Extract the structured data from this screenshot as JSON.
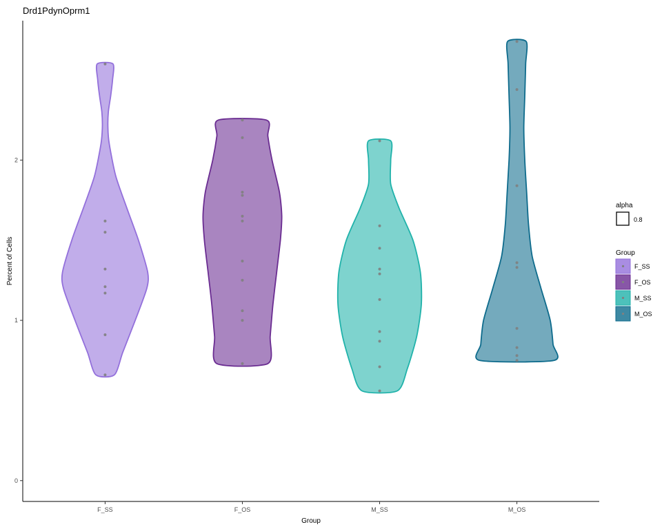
{
  "chart_data": {
    "type": "violin",
    "title": "Drd1PdynOprm1",
    "xlabel": "Group",
    "ylabel": "Percent of Cells",
    "ylim": [
      -0.13,
      2.87
    ],
    "yticks": [
      0,
      1,
      2
    ],
    "categories": [
      "F_SS",
      "F_OS",
      "M_SS",
      "M_OS"
    ],
    "colors": {
      "F_SS": "#9370DB",
      "F_OS": "#6A2C91",
      "M_SS": "#20B2AA",
      "M_OS": "#0E6B8C"
    },
    "points_color": "#808080",
    "fill_alpha": 0.8,
    "series": [
      {
        "name": "F_SS",
        "min": 0.66,
        "max": 2.6,
        "points": [
          2.6,
          1.62,
          1.55,
          1.32,
          1.21,
          1.17,
          0.91,
          0.66
        ],
        "profile": [
          [
            0.66,
            0.2
          ],
          [
            0.8,
            0.38
          ],
          [
            1.0,
            0.65
          ],
          [
            1.2,
            0.9
          ],
          [
            1.3,
            0.92
          ],
          [
            1.5,
            0.72
          ],
          [
            1.7,
            0.47
          ],
          [
            1.9,
            0.23
          ],
          [
            2.1,
            0.09
          ],
          [
            2.2,
            0.06
          ],
          [
            2.3,
            0.07
          ],
          [
            2.4,
            0.12
          ],
          [
            2.5,
            0.16
          ],
          [
            2.6,
            0.17
          ]
        ]
      },
      {
        "name": "F_OS",
        "min": 0.73,
        "max": 2.25,
        "points": [
          2.25,
          2.14,
          1.8,
          1.78,
          1.65,
          1.62,
          1.37,
          1.25,
          1.06,
          1.0,
          0.73
        ],
        "profile": [
          [
            0.73,
            0.55
          ],
          [
            0.9,
            0.6
          ],
          [
            1.1,
            0.66
          ],
          [
            1.3,
            0.74
          ],
          [
            1.5,
            0.82
          ],
          [
            1.65,
            0.85
          ],
          [
            1.8,
            0.8
          ],
          [
            2.0,
            0.64
          ],
          [
            2.15,
            0.55
          ],
          [
            2.25,
            0.52
          ]
        ]
      },
      {
        "name": "M_SS",
        "min": 0.56,
        "max": 2.12,
        "points": [
          2.12,
          1.59,
          1.45,
          1.32,
          1.29,
          1.13,
          0.93,
          0.87,
          0.71,
          0.56
        ],
        "profile": [
          [
            0.56,
            0.38
          ],
          [
            0.7,
            0.6
          ],
          [
            0.9,
            0.8
          ],
          [
            1.1,
            0.9
          ],
          [
            1.3,
            0.88
          ],
          [
            1.5,
            0.72
          ],
          [
            1.7,
            0.42
          ],
          [
            1.85,
            0.24
          ],
          [
            2.0,
            0.24
          ],
          [
            2.12,
            0.24
          ]
        ]
      },
      {
        "name": "M_OS",
        "min": 0.75,
        "max": 2.74,
        "points": [
          2.74,
          2.44,
          1.84,
          1.36,
          1.33,
          0.95,
          0.83,
          0.78,
          0.75
        ],
        "profile": [
          [
            0.75,
            0.8
          ],
          [
            0.85,
            0.78
          ],
          [
            1.0,
            0.72
          ],
          [
            1.2,
            0.52
          ],
          [
            1.4,
            0.33
          ],
          [
            1.6,
            0.25
          ],
          [
            1.8,
            0.21
          ],
          [
            2.0,
            0.17
          ],
          [
            2.2,
            0.15
          ],
          [
            2.4,
            0.17
          ],
          [
            2.6,
            0.19
          ],
          [
            2.74,
            0.2
          ]
        ]
      }
    ],
    "legend": {
      "placement": "right",
      "alpha": {
        "title": "alpha",
        "label": "0.8"
      },
      "group": {
        "title": "Group",
        "labels": [
          "F_SS",
          "F_OS",
          "M_SS",
          "M_OS"
        ]
      }
    }
  }
}
